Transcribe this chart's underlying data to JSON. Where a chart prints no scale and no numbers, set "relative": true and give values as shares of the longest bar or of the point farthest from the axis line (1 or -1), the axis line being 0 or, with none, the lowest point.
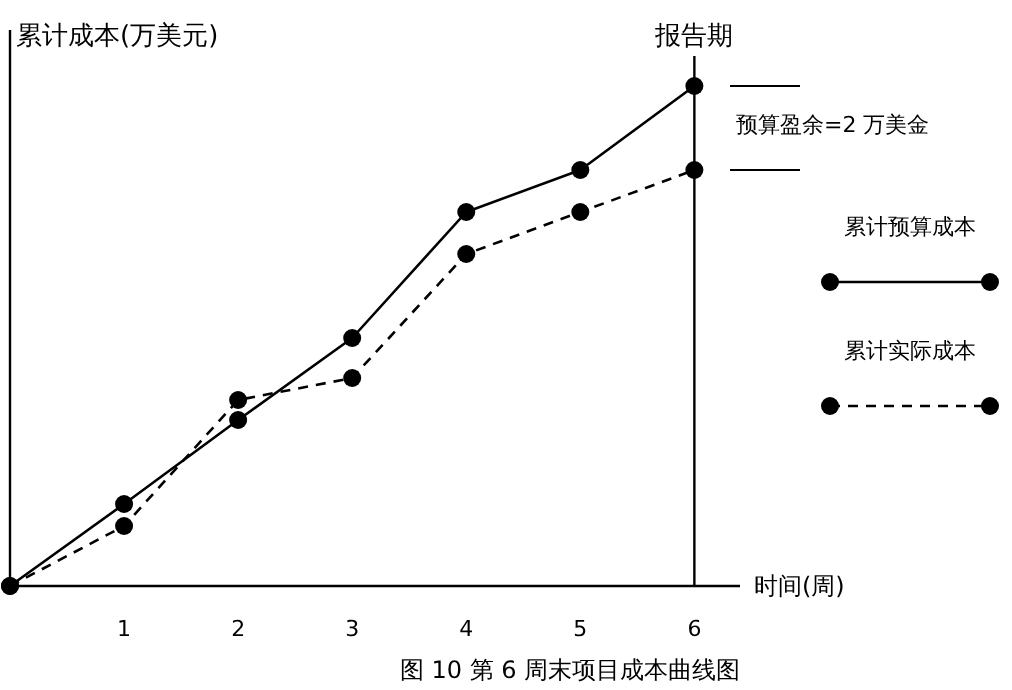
{
  "chart_data": {
    "type": "line",
    "title": "图 10 第 6 周末项目成本曲线图",
    "xlabel": "时间(周)",
    "ylabel": "累计成本(万美元)",
    "relative": true,
    "x": [
      0,
      1,
      2,
      3,
      4,
      5,
      6
    ],
    "xlim": [
      0,
      6.4
    ],
    "xticks": [
      1,
      2,
      3,
      4,
      5,
      6
    ],
    "marker": "circle",
    "legend": "right",
    "grid": false,
    "series": [
      {
        "name": "累计预算成本",
        "color": "#000000",
        "line_style": "solid",
        "values": [
          0,
          0.164,
          0.332,
          0.496,
          0.748,
          0.832,
          1
        ]
      },
      {
        "name": "累计实际成本",
        "color": "#000000",
        "line_style": "dashed",
        "values": [
          0,
          0.12,
          0.372,
          0.416,
          0.664,
          0.748,
          0.832
        ]
      }
    ],
    "ref_lines": [
      {
        "axis": "x",
        "value": 6,
        "label": "报告期",
        "color": "#000000"
      }
    ],
    "annotations": [
      "预算盈余=2 万美金"
    ]
  }
}
